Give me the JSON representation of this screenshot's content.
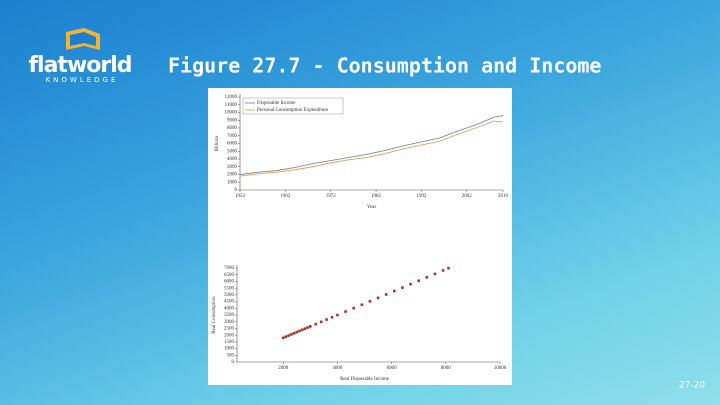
{
  "slide": {
    "logo": "flatworld",
    "logo_sub": "KNOWLEDGE",
    "title": "Figure 27.7 - Consumption and Income",
    "page": "27-20"
  },
  "chart_data": [
    {
      "type": "line",
      "x_label": "Year",
      "y_label": "Billions",
      "x": [
        1952,
        1956,
        1960,
        1964,
        1968,
        1972,
        1976,
        1980,
        1984,
        1988,
        1992,
        1996,
        2000,
        2004,
        2008,
        2010
      ],
      "series": [
        {
          "name": "Disposable Income",
          "color": "#7f8aa0",
          "values": [
            2000,
            2300,
            2500,
            2900,
            3400,
            3800,
            4200,
            4600,
            5100,
            5700,
            6200,
            6700,
            7600,
            8400,
            9400,
            9600
          ]
        },
        {
          "name": "Personal Consumption Expenditure",
          "color": "#e0a060",
          "values": [
            1800,
            2100,
            2300,
            2600,
            3000,
            3500,
            3900,
            4200,
            4700,
            5300,
            5800,
            6300,
            7200,
            8000,
            8900,
            8800
          ]
        }
      ],
      "xlim": [
        1952,
        2010
      ],
      "xticks": [
        1952,
        1962,
        1972,
        1982,
        1992,
        2002,
        2010
      ],
      "ylim": [
        0,
        12000
      ],
      "yticks": [
        0,
        1000,
        2000,
        3000,
        4000,
        5000,
        6000,
        7000,
        8000,
        9000,
        10000,
        11000,
        12000
      ],
      "legend": "upper-left"
    },
    {
      "type": "scatter",
      "x_label": "Real Disposable Income",
      "y_label": "Real Consumption",
      "color": "#a8322a",
      "x": [
        2000,
        2100,
        2200,
        2300,
        2400,
        2500,
        2600,
        2700,
        2800,
        2900,
        3000,
        3200,
        3400,
        3600,
        3800,
        4000,
        4300,
        4600,
        4900,
        5200,
        5500,
        5800,
        6100,
        6400,
        6700,
        7000,
        7300,
        7600,
        7900,
        8100
      ],
      "values": [
        1800,
        1885,
        1970,
        2055,
        2140,
        2225,
        2310,
        2395,
        2480,
        2565,
        2650,
        2820,
        2990,
        3160,
        3330,
        3500,
        3755,
        4010,
        4265,
        4520,
        4775,
        5030,
        5285,
        5540,
        5795,
        6050,
        6305,
        6560,
        6815,
        6985
      ],
      "xlim": [
        0,
        10000
      ],
      "xticks": [
        2000,
        4000,
        6000,
        8000,
        10000
      ],
      "ylim": [
        0,
        7000
      ],
      "yticks": [
        0,
        500,
        1000,
        1500,
        2000,
        2500,
        3000,
        3500,
        4000,
        4500,
        5000,
        5500,
        6000,
        6500,
        7000
      ]
    }
  ]
}
